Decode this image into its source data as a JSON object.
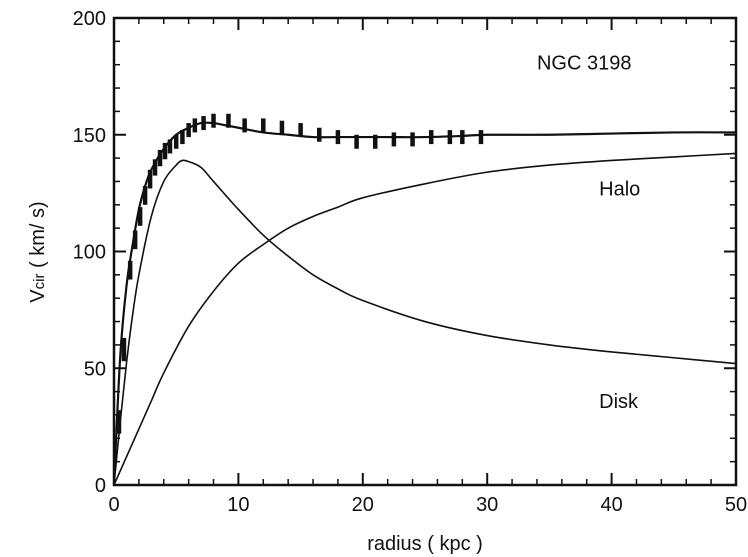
{
  "chart_data": {
    "type": "line",
    "title": "",
    "xlabel": "radius ( kpc )",
    "ylabel_main": "V",
    "ylabel_sub": "cir",
    "ylabel_rest": " ( km/ s)",
    "xlim": [
      0,
      50
    ],
    "ylim": [
      0,
      200
    ],
    "x_ticks": [
      0,
      10,
      20,
      30,
      40,
      50
    ],
    "y_ticks": [
      0,
      50,
      100,
      150,
      200
    ],
    "grid": false,
    "annotations": [
      {
        "text": "NGC  3198",
        "x": 34,
        "y": 178
      },
      {
        "text": "Halo",
        "x": 39,
        "y": 124
      },
      {
        "text": "Disk",
        "x": 39,
        "y": 33
      }
    ],
    "series": [
      {
        "name": "",
        "kind": "curve",
        "x": [
          0,
          0.5,
          1,
          1.5,
          2,
          2.5,
          3,
          4,
          5,
          6,
          7,
          8,
          9,
          10,
          12,
          14,
          16,
          18,
          20,
          22,
          25,
          28,
          30,
          35,
          40,
          45,
          50
        ],
        "y": [
          0,
          55,
          85,
          103,
          118,
          128,
          135,
          144,
          150,
          153,
          155,
          155,
          154,
          153,
          151,
          150,
          149,
          149,
          149,
          149,
          149,
          149.5,
          150,
          150,
          150.5,
          151,
          151
        ]
      },
      {
        "name": "Disk",
        "kind": "curve",
        "x": [
          0,
          0.5,
          1,
          1.5,
          2,
          3,
          4,
          5,
          5.5,
          6,
          7,
          8,
          10,
          12,
          14,
          16,
          18,
          20,
          25,
          30,
          35,
          40,
          45,
          50
        ],
        "y": [
          0,
          27,
          52,
          73,
          90,
          115,
          130,
          137,
          139,
          138.5,
          136,
          130,
          118,
          107,
          98,
          90,
          84,
          79,
          70,
          64,
          60,
          57,
          54.5,
          52
        ]
      },
      {
        "name": "Halo",
        "kind": "curve",
        "x": [
          0,
          1,
          2,
          3,
          4,
          6,
          8,
          10,
          12,
          14,
          16,
          18,
          20,
          25,
          30,
          35,
          40,
          45,
          50
        ],
        "y": [
          0,
          12,
          24,
          36,
          48,
          68,
          83,
          95,
          103,
          110,
          115,
          119,
          123,
          129,
          134,
          137,
          139,
          140.5,
          142
        ]
      },
      {
        "name": "",
        "kind": "errorbars",
        "x": [
          0.4,
          0.8,
          1.3,
          1.7,
          2.1,
          2.5,
          2.9,
          3.3,
          3.7,
          4.1,
          4.5,
          5.0,
          5.5,
          6.0,
          6.5,
          7.2,
          8.0,
          9.2,
          10.5,
          12.0,
          13.5,
          15.0,
          16.5,
          18.0,
          19.5,
          21.0,
          22.5,
          24.0,
          25.5,
          27.0,
          28.0,
          29.5
        ],
        "y": [
          27,
          58,
          92,
          105,
          115,
          124,
          131,
          136,
          140,
          143,
          145,
          147,
          149,
          152,
          154,
          155,
          156,
          156,
          154,
          154,
          153,
          152,
          150,
          149,
          147,
          147,
          148,
          148,
          149,
          149,
          149,
          149
        ],
        "err": [
          5,
          5,
          4,
          4,
          4,
          4,
          4,
          3.5,
          3.5,
          3.5,
          3,
          3,
          3,
          3,
          3,
          3,
          3,
          3,
          3,
          3,
          3,
          3,
          3,
          3,
          3,
          3,
          3,
          3,
          3,
          3,
          3,
          3
        ]
      }
    ]
  }
}
